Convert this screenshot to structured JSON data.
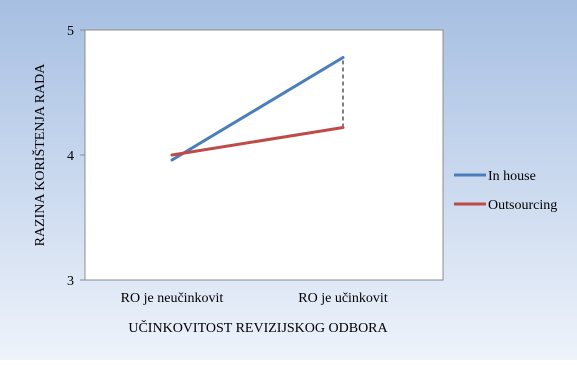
{
  "chart_data": {
    "type": "line",
    "categories": [
      "RO je neučinkovit",
      "RO je učinkovit"
    ],
    "series": [
      {
        "name": "In house",
        "values": [
          3.96,
          4.78
        ],
        "color": "#4a7ebb"
      },
      {
        "name": "Outsourcing",
        "values": [
          4.0,
          4.22
        ],
        "color": "#be4b48"
      }
    ],
    "ylim": [
      3,
      5
    ],
    "yticks": [
      3,
      4,
      5
    ],
    "ylabel": "RAZINA KORIŠTENJA RADA",
    "xlabel": "UČINKOVITOST REVIZIJSKOG ODBORA",
    "legend_position": "right",
    "grid": false,
    "annotations": [
      {
        "type": "dashed-vertical-line",
        "at_category": "RO je učinkovit",
        "from": 4.22,
        "to": 4.78
      }
    ],
    "colors": {
      "background_top": "#a6bfe2",
      "background_bottom": "#eef3fb",
      "plot_area": "#ffffff"
    }
  }
}
